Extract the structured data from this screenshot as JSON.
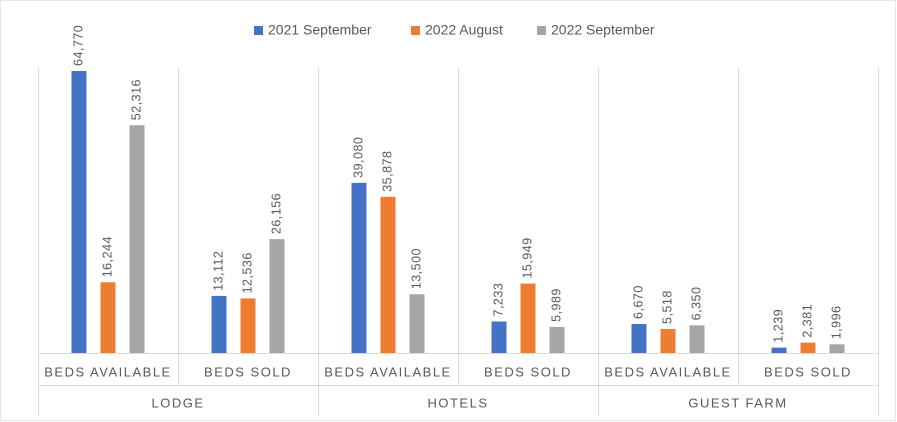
{
  "chart_data": {
    "type": "bar",
    "categories": [
      "BEDS AVAILABLE",
      "BEDS SOLD",
      "BEDS AVAILABLE",
      "BEDS SOLD",
      "BEDS AVAILABLE",
      "BEDS SOLD"
    ],
    "groups": [
      "LODGE",
      "HOTELS",
      "GUEST FARM"
    ],
    "series": [
      {
        "name": "2021 September",
        "color": "#4472c4",
        "values": [
          64770,
          13112,
          39080,
          7233,
          6670,
          1239
        ],
        "value_labels": [
          "64,770",
          "13,112",
          "39,080",
          "7,233",
          "6,670",
          "1,239"
        ]
      },
      {
        "name": "2022 August",
        "color": "#ed7d31",
        "values": [
          16244,
          12536,
          35878,
          15949,
          5518,
          2381
        ],
        "value_labels": [
          "16,244",
          "12,536",
          "35,878",
          "15,949",
          "5,518",
          "2,381"
        ]
      },
      {
        "name": "2022 September",
        "color": "#a5a5a5",
        "values": [
          52316,
          26156,
          13500,
          5989,
          6350,
          1996
        ],
        "value_labels": [
          "52,316",
          "26,156",
          "13,500",
          "5,989",
          "6,350",
          "1,996"
        ]
      }
    ],
    "legend": "top"
  }
}
